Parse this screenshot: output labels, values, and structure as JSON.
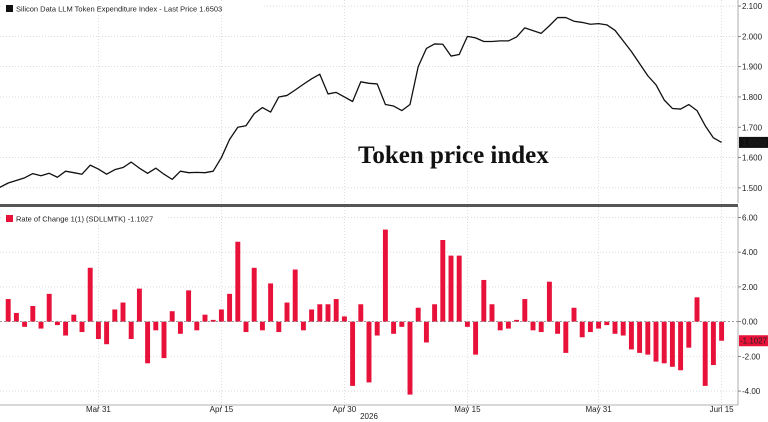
{
  "colors": {
    "price_line": "#111111",
    "roc_bar": "#e8113a",
    "panel_divider": "#555555",
    "gridline": "#c8c8c8",
    "zero_line": "#7a7a7a",
    "tag_fill": "#111111",
    "tag_text": "#ffffff",
    "roc_tag_fill": "#e8113a"
  },
  "overlay_title": "Token price index",
  "chart_data": [
    {
      "type": "line",
      "legend": "Silicon Data LLM Token Expenditure Index - Last Price 1.6503",
      "last_value_label": "1.6503",
      "ylim": [
        1.45,
        2.12
      ],
      "y_ticks": [
        "1.500",
        "1.600",
        "1.700",
        "1.800",
        "1.900",
        "2.000",
        "2.100"
      ],
      "y_tick_values": [
        1.5,
        1.6,
        1.7,
        1.8,
        1.9,
        2.0,
        2.1
      ],
      "grid": true,
      "x_range": [
        "2026-03-19",
        "2026-06-17"
      ],
      "series": [
        {
          "x": [
            "2026-03-19",
            "2026-03-20",
            "2026-03-22",
            "2026-03-23",
            "2026-03-24",
            "2026-03-25",
            "2026-03-26",
            "2026-03-27",
            "2026-03-28",
            "2026-03-29",
            "2026-03-30",
            "2026-03-31",
            "2026-04-01",
            "2026-04-02",
            "2026-04-03",
            "2026-04-04",
            "2026-04-05",
            "2026-04-06",
            "2026-04-07",
            "2026-04-08",
            "2026-04-09",
            "2026-04-10",
            "2026-04-11",
            "2026-04-12",
            "2026-04-13",
            "2026-04-14",
            "2026-04-15",
            "2026-04-16",
            "2026-04-17",
            "2026-04-18",
            "2026-04-19",
            "2026-04-20",
            "2026-04-21",
            "2026-04-22",
            "2026-04-23",
            "2026-04-24",
            "2026-04-25",
            "2026-04-26",
            "2026-04-27",
            "2026-04-28",
            "2026-04-29",
            "2026-04-30",
            "2026-05-01",
            "2026-05-02",
            "2026-05-03",
            "2026-05-04",
            "2026-05-05",
            "2026-05-06",
            "2026-05-07",
            "2026-05-08",
            "2026-05-09",
            "2026-05-10",
            "2026-05-11",
            "2026-05-12",
            "2026-05-13",
            "2026-05-14",
            "2026-05-15",
            "2026-05-16",
            "2026-05-17",
            "2026-05-18",
            "2026-05-19",
            "2026-05-20",
            "2026-05-21",
            "2026-05-22",
            "2026-05-24",
            "2026-05-25",
            "2026-05-26",
            "2026-05-27",
            "2026-05-28",
            "2026-05-29",
            "2026-05-30",
            "2026-05-31",
            "2026-06-01",
            "2026-06-02",
            "2026-06-03",
            "2026-06-04",
            "2026-06-05",
            "2026-06-06",
            "2026-06-07",
            "2026-06-08",
            "2026-06-09",
            "2026-06-10",
            "2026-06-11",
            "2026-06-12",
            "2026-06-13",
            "2026-06-14",
            "2026-06-15"
          ],
          "y": [
            1.502,
            1.516,
            1.533,
            1.547,
            1.54,
            1.548,
            1.535,
            1.555,
            1.55,
            1.545,
            1.575,
            1.562,
            1.545,
            1.56,
            1.567,
            1.585,
            1.565,
            1.548,
            1.565,
            1.545,
            1.528,
            1.555,
            1.55,
            1.551,
            1.55,
            1.555,
            1.6,
            1.66,
            1.7,
            1.705,
            1.745,
            1.765,
            1.75,
            1.8,
            1.805,
            1.823,
            1.842,
            1.86,
            1.875,
            1.81,
            1.815,
            1.8,
            1.785,
            1.85,
            1.845,
            1.843,
            1.775,
            1.77,
            1.755,
            1.775,
            1.9,
            1.96,
            1.975,
            1.974,
            1.935,
            1.94,
            2.0,
            1.995,
            1.983,
            1.983,
            1.985,
            1.985,
            1.998,
            2.028,
            2.01,
            2.035,
            2.062,
            2.062,
            2.05,
            2.046,
            2.04,
            2.042,
            2.038,
            2.02,
            1.985,
            1.95,
            1.91,
            1.87,
            1.84,
            1.79,
            1.762,
            1.76,
            1.775,
            1.755,
            1.705,
            1.665,
            1.65
          ]
        }
      ]
    },
    {
      "type": "bar",
      "legend": "Rate of Change 1(1) (SDLLMTK) -1.1027",
      "last_value_label": "-1.1027",
      "ylim": [
        -4.8,
        6.6
      ],
      "y_ticks": [
        "6.00",
        "4.00",
        "2.00",
        "0.00",
        "-2.00",
        "-4.00"
      ],
      "y_tick_values": [
        6,
        4,
        2,
        0,
        -2,
        -4
      ],
      "x_ticks": [
        "Mar 31",
        "Apr 15",
        "Apr 30",
        "May 15",
        "May 31",
        "Jun 15"
      ],
      "x_tick_dates": [
        "2026-03-31",
        "2026-04-15",
        "2026-04-30",
        "2026-05-15",
        "2026-05-31",
        "2026-06-15"
      ],
      "x_year_label": "2026",
      "x_range": [
        "2026-03-19",
        "2026-06-17"
      ],
      "grid": true,
      "series": [
        {
          "x": [
            "2026-03-20",
            "2026-03-21",
            "2026-03-22",
            "2026-03-23",
            "2026-03-24",
            "2026-03-25",
            "2026-03-26",
            "2026-03-27",
            "2026-03-28",
            "2026-03-29",
            "2026-03-30",
            "2026-03-31",
            "2026-04-01",
            "2026-04-02",
            "2026-04-03",
            "2026-04-04",
            "2026-04-05",
            "2026-04-06",
            "2026-04-07",
            "2026-04-08",
            "2026-04-09",
            "2026-04-10",
            "2026-04-11",
            "2026-04-12",
            "2026-04-13",
            "2026-04-14",
            "2026-04-15",
            "2026-04-16",
            "2026-04-17",
            "2026-04-18",
            "2026-04-19",
            "2026-04-20",
            "2026-04-21",
            "2026-04-22",
            "2026-04-23",
            "2026-04-24",
            "2026-04-25",
            "2026-04-26",
            "2026-04-27",
            "2026-04-28",
            "2026-04-29",
            "2026-04-30",
            "2026-05-01",
            "2026-05-02",
            "2026-05-03",
            "2026-05-04",
            "2026-05-05",
            "2026-05-06",
            "2026-05-07",
            "2026-05-08",
            "2026-05-09",
            "2026-05-10",
            "2026-05-11",
            "2026-05-12",
            "2026-05-13",
            "2026-05-14",
            "2026-05-15",
            "2026-05-16",
            "2026-05-17",
            "2026-05-18",
            "2026-05-19",
            "2026-05-20",
            "2026-05-21",
            "2026-05-22",
            "2026-05-23",
            "2026-05-24",
            "2026-05-25",
            "2026-05-26",
            "2026-05-27",
            "2026-05-28",
            "2026-05-29",
            "2026-05-30",
            "2026-05-31",
            "2026-06-01",
            "2026-06-02",
            "2026-06-03",
            "2026-06-04",
            "2026-06-05",
            "2026-06-06",
            "2026-06-07",
            "2026-06-08",
            "2026-06-09",
            "2026-06-10",
            "2026-06-11",
            "2026-06-12",
            "2026-06-13",
            "2026-06-14",
            "2026-06-15"
          ],
          "y": [
            1.3,
            0.5,
            -0.3,
            0.9,
            -0.4,
            1.6,
            -0.2,
            -0.8,
            0.4,
            -0.6,
            3.1,
            -1.0,
            -1.3,
            0.7,
            1.1,
            -1.0,
            1.9,
            -2.4,
            -0.5,
            -2.1,
            0.6,
            -0.7,
            1.8,
            -0.5,
            0.4,
            0.1,
            0.7,
            1.6,
            4.6,
            -0.6,
            3.1,
            -0.5,
            2.2,
            -0.6,
            1.1,
            3.0,
            -0.5,
            0.7,
            1.0,
            1.0,
            1.3,
            0.3,
            -3.7,
            1.0,
            -3.5,
            -0.8,
            5.3,
            -0.7,
            -0.3,
            -4.2,
            0.8,
            -1.2,
            1.0,
            4.7,
            3.8,
            3.8,
            -0.3,
            -1.9,
            2.4,
            1.0,
            -0.5,
            -0.4,
            0.1,
            1.3,
            -0.5,
            -0.6,
            2.3,
            -0.7,
            -1.8,
            0.8,
            -0.9,
            -0.6,
            -0.4,
            -0.2,
            -0.7,
            -0.8,
            -1.6,
            -1.8,
            -1.9,
            -2.3,
            -2.4,
            -2.6,
            -2.8,
            -1.5,
            1.4,
            -3.7,
            -2.5,
            -1.1
          ]
        }
      ]
    }
  ]
}
